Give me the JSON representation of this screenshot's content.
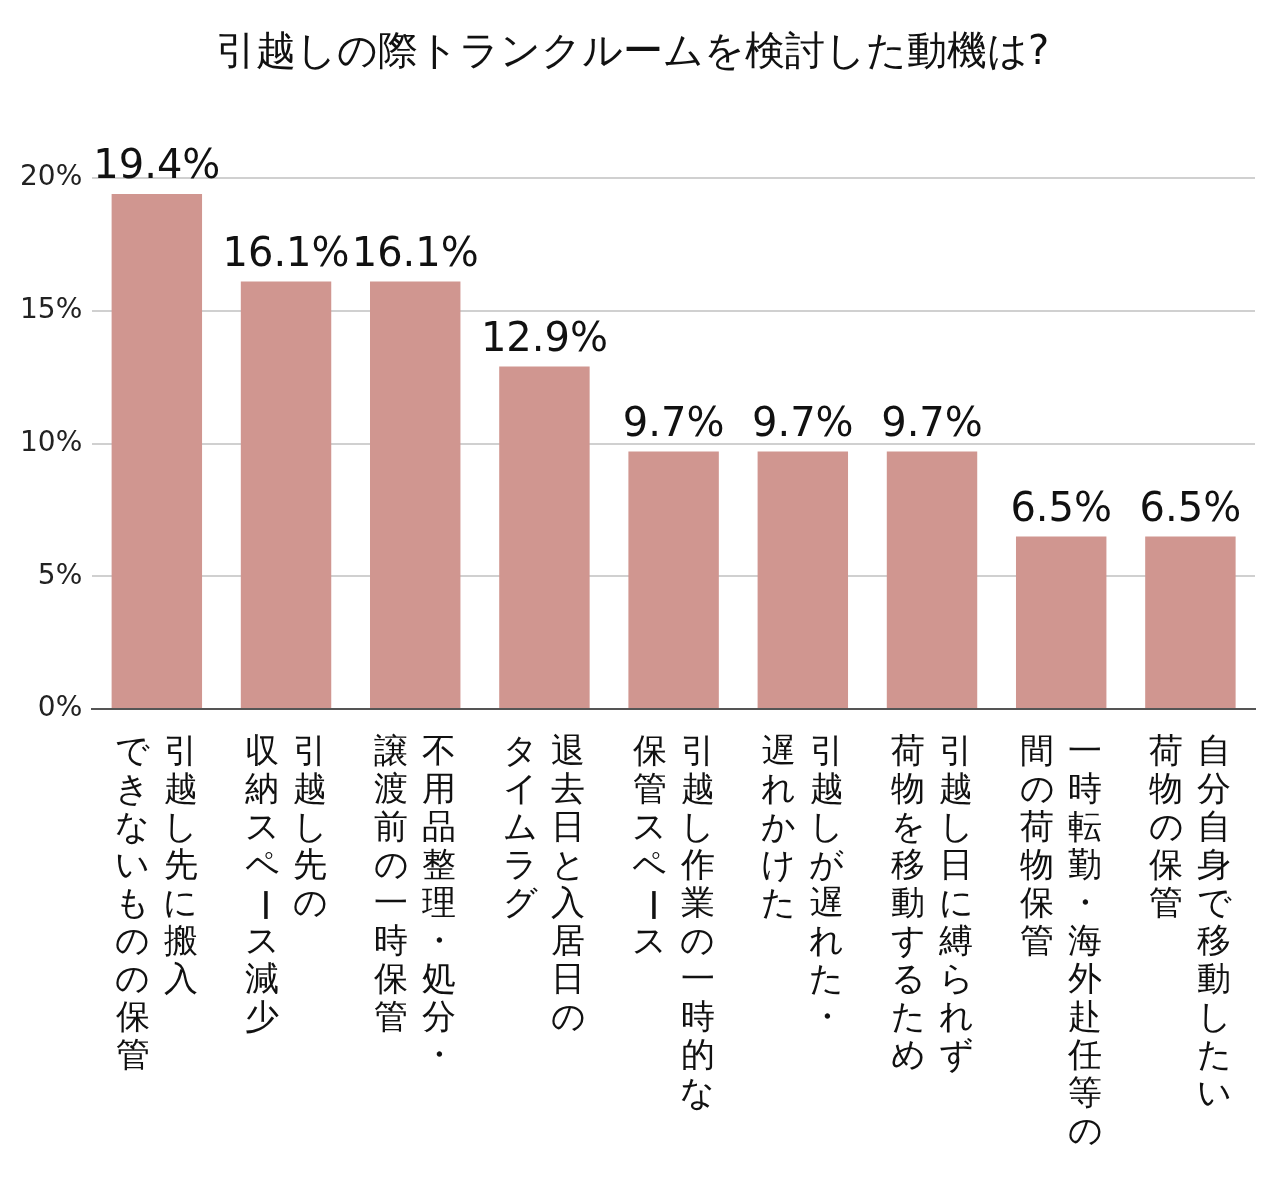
{
  "chart_data": {
    "type": "bar",
    "title": "引越しの際トランクルームを検討した動機は?",
    "categories": [
      [
        "引越し先に搬入",
        "できないものの保管"
      ],
      [
        "引越し先の",
        "収納スペース減少"
      ],
      [
        "不用品整理・処分・",
        "譲渡前の一時保管"
      ],
      [
        "退去日と入居日の",
        "タイムラグ"
      ],
      [
        "引越し作業の一時的な",
        "保管スペース"
      ],
      [
        "引越しが遅れた・",
        "遅れかけた"
      ],
      [
        "引越し日に縛られず",
        "荷物を移動するため"
      ],
      [
        "一時転勤・海外赴任等の",
        "間の荷物保管"
      ],
      [
        "自分自身で移動したい",
        "荷物の保管"
      ]
    ],
    "values": [
      19.4,
      16.1,
      16.1,
      12.9,
      9.7,
      9.7,
      9.7,
      6.5,
      6.5
    ],
    "value_labels": [
      "19.4%",
      "16.1%",
      "16.1%",
      "12.9%",
      "9.7%",
      "9.7%",
      "9.7%",
      "6.5%",
      "6.5%"
    ],
    "data_labels": true,
    "color": "#d09690",
    "ylim": [
      0,
      20
    ],
    "yticks": [
      {
        "value": 0,
        "label": "0%"
      },
      {
        "value": 5,
        "label": "5%"
      },
      {
        "value": 10,
        "label": "10%"
      },
      {
        "value": 15,
        "label": "15%"
      },
      {
        "value": 20,
        "label": "20%"
      }
    ],
    "grid": true
  }
}
